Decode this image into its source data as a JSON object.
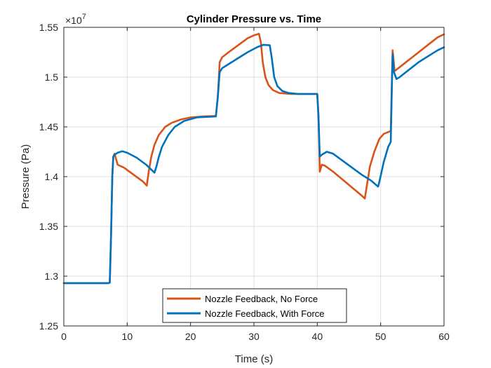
{
  "chart_data": {
    "type": "line",
    "title": "Cylinder Pressure vs. Time",
    "xlabel": "Time (s)",
    "ylabel": "Pressure (Pa)",
    "xlim": [
      0,
      60
    ],
    "ylim": [
      12500000,
      15500000
    ],
    "y_exponent_base": "×10",
    "y_exponent_power": "7",
    "xticks": [
      0,
      10,
      20,
      30,
      40,
      50,
      60
    ],
    "xtick_labels": [
      "0",
      "10",
      "20",
      "30",
      "40",
      "50",
      "60"
    ],
    "yticks": [
      12500000,
      13000000,
      13500000,
      14000000,
      14500000,
      15000000,
      15500000
    ],
    "ytick_labels": [
      "1.25",
      "1.3",
      "1.35",
      "1.4",
      "1.45",
      "1.5",
      "1.55"
    ],
    "grid": true,
    "legend_position": "bottom-center",
    "series": [
      {
        "name": "Nozzle Feedback, No Force",
        "color": "#D95319",
        "points": [
          [
            0,
            12930000
          ],
          [
            7.0,
            12930000
          ],
          [
            7.25,
            12935000
          ],
          [
            7.45,
            13400000
          ],
          [
            7.65,
            14000000
          ],
          [
            7.8,
            14200000
          ],
          [
            8.0,
            14230000
          ],
          [
            8.5,
            14120000
          ],
          [
            9.5,
            14090000
          ],
          [
            11.0,
            14020000
          ],
          [
            12.5,
            13950000
          ],
          [
            13.1,
            13910000
          ],
          [
            13.4,
            14050000
          ],
          [
            13.8,
            14200000
          ],
          [
            14.3,
            14320000
          ],
          [
            15.0,
            14420000
          ],
          [
            16.0,
            14500000
          ],
          [
            17.0,
            14540000
          ],
          [
            18.5,
            14575000
          ],
          [
            20.0,
            14595000
          ],
          [
            22.0,
            14605000
          ],
          [
            24.0,
            14610000
          ],
          [
            24.3,
            14800000
          ],
          [
            24.6,
            15150000
          ],
          [
            25.0,
            15200000
          ],
          [
            26.0,
            15250000
          ],
          [
            27.5,
            15320000
          ],
          [
            29.0,
            15390000
          ],
          [
            30.0,
            15420000
          ],
          [
            30.8,
            15435000
          ],
          [
            31.1,
            15350000
          ],
          [
            31.4,
            15150000
          ],
          [
            31.8,
            15000000
          ],
          [
            32.3,
            14920000
          ],
          [
            33.0,
            14870000
          ],
          [
            34.0,
            14840000
          ],
          [
            36.0,
            14830000
          ],
          [
            38.0,
            14830000
          ],
          [
            40.0,
            14830000
          ],
          [
            40.2,
            14600000
          ],
          [
            40.4,
            14050000
          ],
          [
            40.7,
            14120000
          ],
          [
            41.2,
            14110000
          ],
          [
            42.5,
            14050000
          ],
          [
            44.0,
            13970000
          ],
          [
            45.5,
            13890000
          ],
          [
            47.0,
            13810000
          ],
          [
            47.5,
            13780000
          ],
          [
            47.8,
            13900000
          ],
          [
            48.3,
            14100000
          ],
          [
            49.0,
            14250000
          ],
          [
            49.8,
            14380000
          ],
          [
            50.5,
            14430000
          ],
          [
            51.3,
            14450000
          ],
          [
            51.6,
            14460000
          ],
          [
            51.8,
            15000000
          ],
          [
            51.9,
            15270000
          ],
          [
            52.2,
            15060000
          ],
          [
            53.0,
            15100000
          ],
          [
            54.0,
            15150000
          ],
          [
            55.0,
            15200000
          ],
          [
            56.0,
            15250000
          ],
          [
            57.0,
            15300000
          ],
          [
            58.0,
            15350000
          ],
          [
            59.0,
            15400000
          ],
          [
            60.0,
            15430000
          ]
        ]
      },
      {
        "name": "Nozzle Feedback, With Force",
        "color": "#0072BD",
        "points": [
          [
            0,
            12930000
          ],
          [
            7.0,
            12930000
          ],
          [
            7.25,
            12935000
          ],
          [
            7.45,
            13400000
          ],
          [
            7.65,
            14000000
          ],
          [
            7.8,
            14200000
          ],
          [
            8.0,
            14220000
          ],
          [
            8.5,
            14240000
          ],
          [
            9.2,
            14255000
          ],
          [
            10.0,
            14240000
          ],
          [
            11.5,
            14190000
          ],
          [
            13.0,
            14120000
          ],
          [
            14.3,
            14040000
          ],
          [
            14.6,
            14100000
          ],
          [
            15.0,
            14200000
          ],
          [
            15.5,
            14300000
          ],
          [
            16.5,
            14420000
          ],
          [
            17.5,
            14500000
          ],
          [
            19.0,
            14560000
          ],
          [
            21.0,
            14595000
          ],
          [
            24.0,
            14605000
          ],
          [
            24.3,
            14800000
          ],
          [
            24.6,
            15050000
          ],
          [
            25.0,
            15090000
          ],
          [
            26.0,
            15130000
          ],
          [
            27.5,
            15190000
          ],
          [
            29.0,
            15250000
          ],
          [
            30.5,
            15300000
          ],
          [
            31.5,
            15325000
          ],
          [
            32.5,
            15320000
          ],
          [
            32.8,
            15200000
          ],
          [
            33.2,
            15000000
          ],
          [
            33.7,
            14910000
          ],
          [
            34.5,
            14860000
          ],
          [
            35.5,
            14840000
          ],
          [
            37.0,
            14830000
          ],
          [
            40.0,
            14830000
          ],
          [
            40.2,
            14600000
          ],
          [
            40.4,
            14200000
          ],
          [
            40.7,
            14220000
          ],
          [
            41.5,
            14250000
          ],
          [
            42.5,
            14230000
          ],
          [
            44.0,
            14160000
          ],
          [
            45.5,
            14090000
          ],
          [
            47.0,
            14020000
          ],
          [
            48.5,
            13960000
          ],
          [
            49.6,
            13900000
          ],
          [
            49.8,
            13950000
          ],
          [
            50.5,
            14150000
          ],
          [
            51.2,
            14300000
          ],
          [
            51.6,
            14350000
          ],
          [
            51.8,
            15000000
          ],
          [
            51.9,
            15230000
          ],
          [
            52.1,
            15050000
          ],
          [
            52.5,
            14980000
          ],
          [
            53.0,
            15000000
          ],
          [
            54.0,
            15050000
          ],
          [
            55.0,
            15100000
          ],
          [
            56.0,
            15150000
          ],
          [
            57.0,
            15190000
          ],
          [
            58.0,
            15230000
          ],
          [
            59.0,
            15270000
          ],
          [
            60.0,
            15300000
          ]
        ]
      }
    ]
  }
}
